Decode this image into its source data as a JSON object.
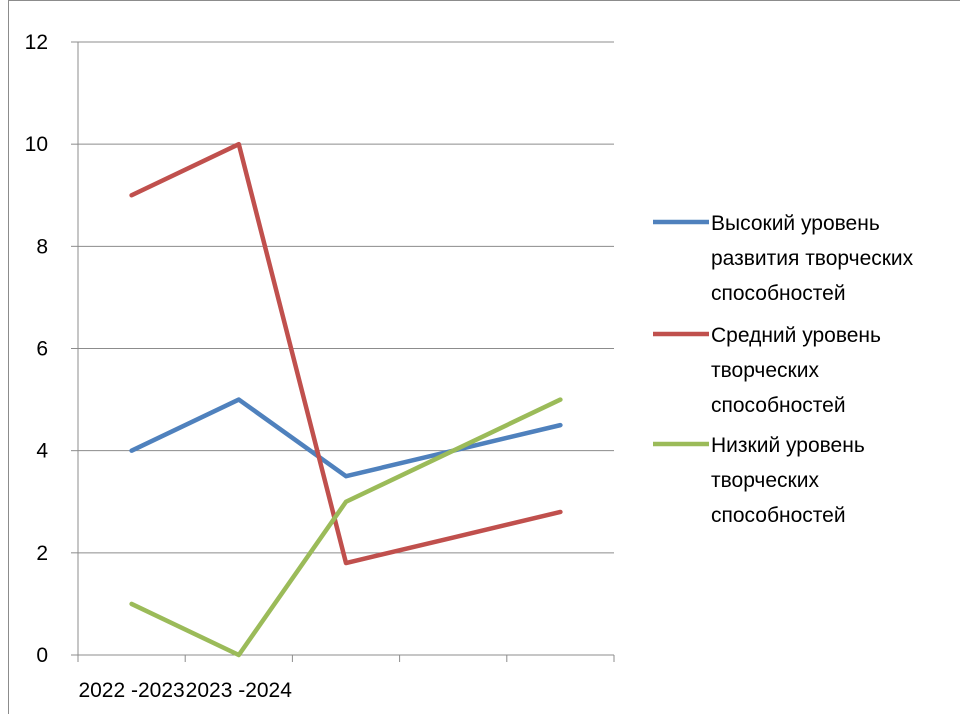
{
  "chart_data": {
    "type": "line",
    "categories": [
      "2022 -2023",
      "2023 -2024",
      "",
      "",
      ""
    ],
    "ylim": [
      0,
      12
    ],
    "yticks": [
      0,
      2,
      4,
      6,
      8,
      10,
      12
    ],
    "grid": true,
    "legend_position": "right",
    "series": [
      {
        "name": "Высокий уровень развития творческих способностей",
        "legend_lines": [
          "Высокий уровень",
          "развития творческих",
          "способностей"
        ],
        "color": "#4f81bd",
        "values": [
          4,
          5,
          3.5,
          4,
          4.5
        ]
      },
      {
        "name": "Средний уровень творческих способностей",
        "legend_lines": [
          "Средний уровень",
          "творческих",
          "способностей"
        ],
        "color": "#c0504d",
        "values": [
          9,
          10,
          1.8,
          2.3,
          2.8
        ]
      },
      {
        "name": "Низкий уровень творческих способностей",
        "legend_lines": [
          "Низкий уровень",
          "творческих",
          "способностей"
        ],
        "color": "#9bbb59",
        "values": [
          1,
          0,
          3,
          4,
          5
        ]
      }
    ]
  }
}
